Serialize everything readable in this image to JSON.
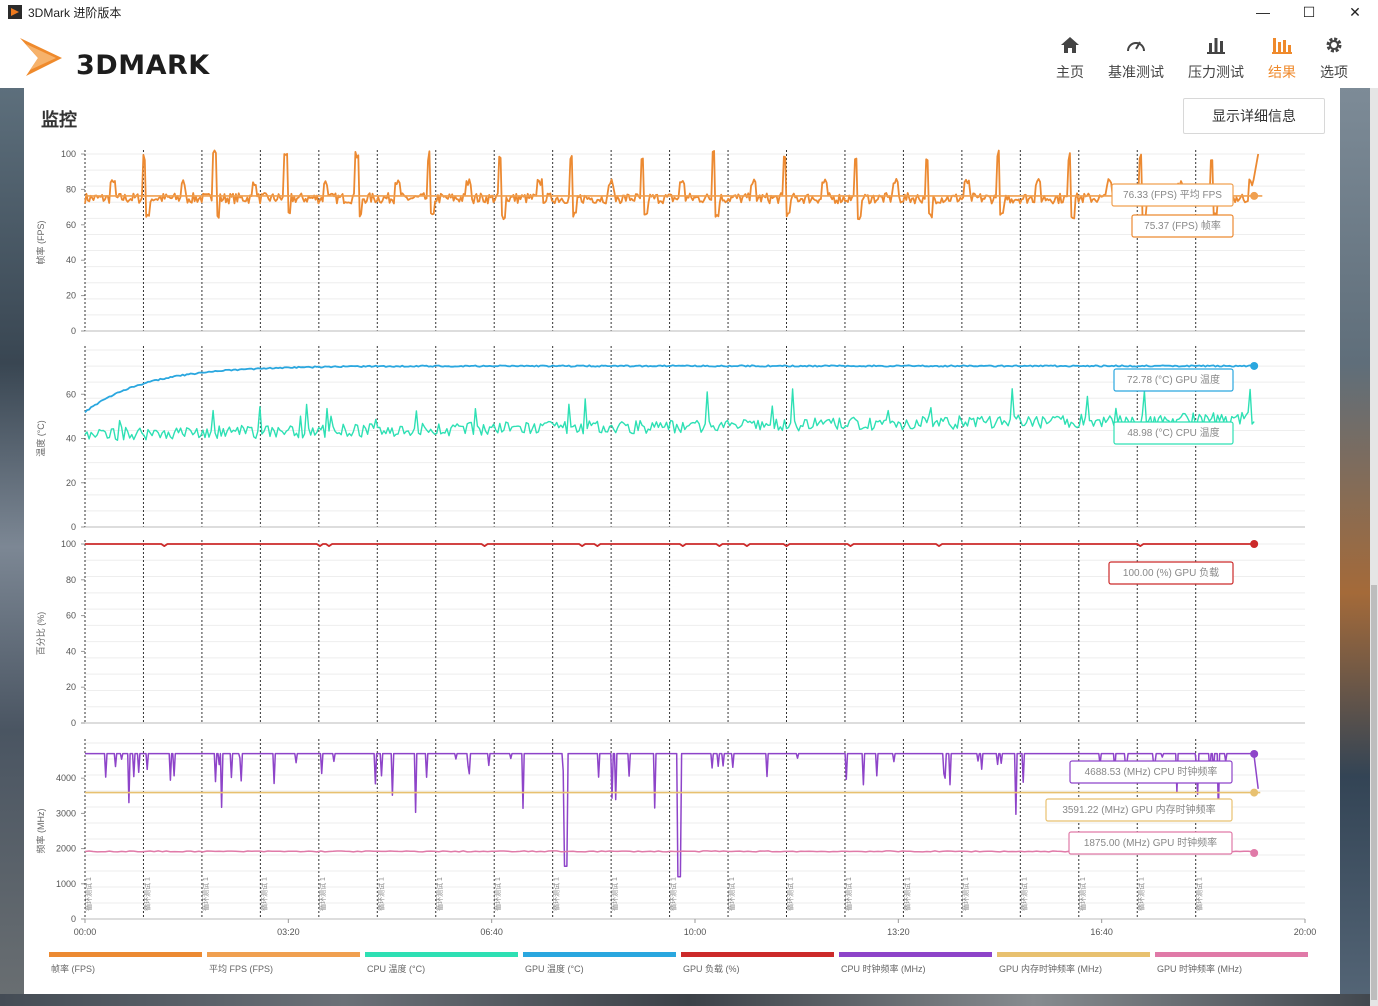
{
  "window": {
    "title": "3DMark 进阶版本",
    "controls": [
      "—",
      "☐",
      "✕"
    ]
  },
  "header": {
    "logo_text": "3DMARK",
    "nav": [
      {
        "label": "主页",
        "icon": "home-icon",
        "active": false
      },
      {
        "label": "基准测试",
        "icon": "gauge-icon",
        "active": false
      },
      {
        "label": "压力测试",
        "icon": "bar-chart-icon",
        "active": false
      },
      {
        "label": "结果",
        "icon": "results-chart-icon",
        "active": true
      },
      {
        "label": "选项",
        "icon": "gear-icon",
        "active": false
      }
    ]
  },
  "panel": {
    "title": "监控",
    "detail_button": "显示详细信息"
  },
  "colors": {
    "fps": "#ec8a32",
    "avg_fps": "#f0a050",
    "cpu_temp": "#2ee0b4",
    "gpu_temp": "#2aa7df",
    "gpu_load": "#cc2a2a",
    "cpu_clock": "#8e44c9",
    "gpu_mem_clock": "#e8c170",
    "gpu_clock": "#e07aa8",
    "accent": "#ef8a2c"
  },
  "chart_data": [
    {
      "type": "line",
      "ylabel": "帧率 (FPS)",
      "ylim": [
        0,
        100
      ],
      "yticks": [
        0,
        20,
        40,
        60,
        80,
        100
      ],
      "series": [
        {
          "name": "帧率 (FPS)",
          "pattern": "periodic-spikes",
          "base": 75,
          "spike_high": 102,
          "spike_low": 63,
          "period_s": 70
        },
        {
          "name": "平均 FPS (FPS)",
          "value": 76.33
        }
      ],
      "callouts": [
        "76.33 (FPS) 平均 FPS",
        "75.37 (FPS) 帧率"
      ]
    },
    {
      "type": "line",
      "ylabel": "温度 (°C)",
      "ylim": [
        0,
        80
      ],
      "yticks": [
        0,
        20,
        40,
        60
      ],
      "series": [
        {
          "name": "GPU 温度 (°C)",
          "start": 52,
          "end": 72.78
        },
        {
          "name": "CPU 温度 (°C)",
          "start": 42,
          "end": 48.98
        }
      ],
      "callouts": [
        "72.78 (°C) GPU 温度",
        "48.98 (°C) CPU 温度"
      ]
    },
    {
      "type": "line",
      "ylabel": "百分比 (%)",
      "ylim": [
        0,
        100
      ],
      "yticks": [
        0,
        20,
        40,
        60,
        80,
        100
      ],
      "series": [
        {
          "name": "GPU 负载 (%)",
          "value": 100.0
        }
      ],
      "callouts": [
        "100.00 (%) GPU 负载"
      ]
    },
    {
      "type": "line",
      "ylabel": "频率 (MHz)",
      "ylim": [
        0,
        5000
      ],
      "yticks": [
        0,
        1000,
        2000,
        3000,
        4000
      ],
      "series": [
        {
          "name": "CPU 时钟频率 (MHz)",
          "value": 4688.53,
          "baseline": 4700
        },
        {
          "name": "GPU 内存时钟频率 (MHz)",
          "value": 3591.22
        },
        {
          "name": "GPU 时钟频率 (MHz)",
          "value": 1875.0
        }
      ],
      "callouts": [
        "4688.53 (MHz) CPU 时钟频率",
        "3591.22 (MHz) GPU 内存时钟频率",
        "1875.00 (MHz) GPU 时钟频率"
      ]
    }
  ],
  "x_axis": {
    "ticks": [
      "00:00",
      "03:20",
      "06:40",
      "10:00",
      "13:20",
      "16:40",
      "20:00"
    ],
    "max_s": 1200,
    "loop_marker_label": "循环测试 1",
    "loop_count": 20
  },
  "legend": [
    {
      "label": "帧率 (FPS)",
      "color": "#ec8a32"
    },
    {
      "label": "平均 FPS (FPS)",
      "color": "#f0a050"
    },
    {
      "label": "CPU 温度 (°C)",
      "color": "#2ee0b4"
    },
    {
      "label": "GPU 温度 (°C)",
      "color": "#2aa7df"
    },
    {
      "label": "GPU 负载 (%)",
      "color": "#cc2a2a"
    },
    {
      "label": "CPU 时钟频率 (MHz)",
      "color": "#8e44c9"
    },
    {
      "label": "GPU 内存时钟频率 (MHz)",
      "color": "#e8c170"
    },
    {
      "label": "GPU 时钟频率 (MHz)",
      "color": "#e07aa8"
    }
  ]
}
